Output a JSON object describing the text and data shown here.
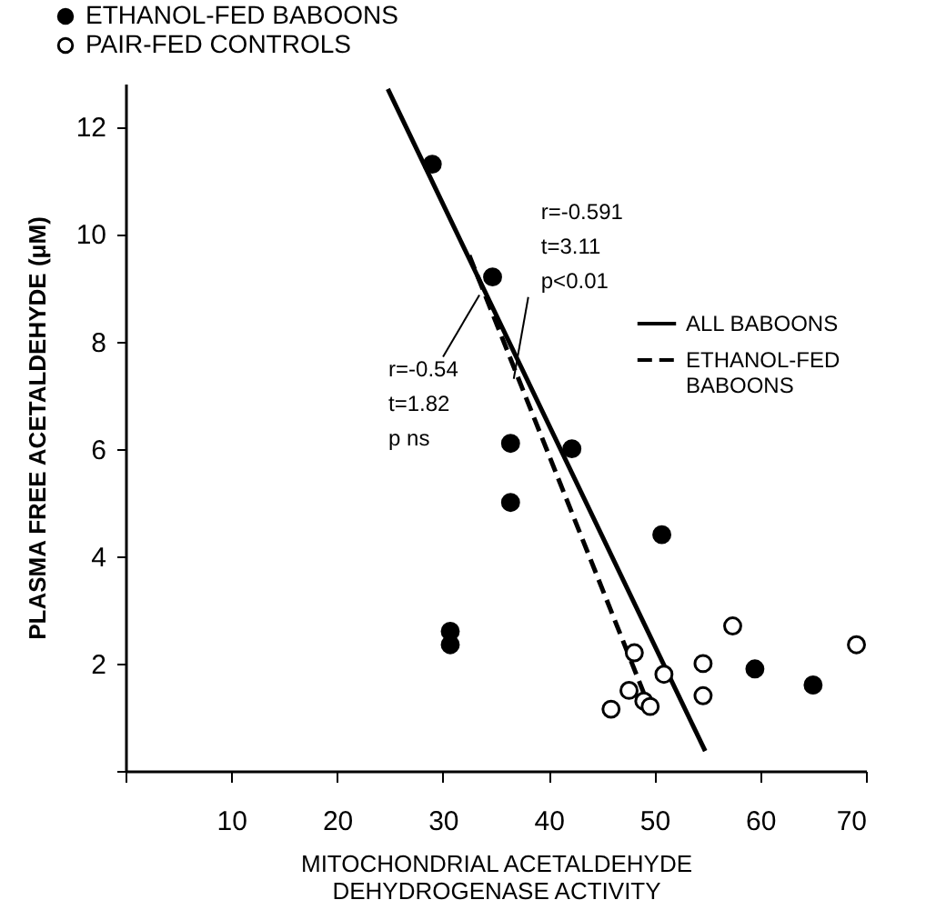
{
  "chart_data": {
    "type": "scatter",
    "xlabel": "MITOCHONDRIAL ACETALDEHYDE\nDEHYDROGENASE ACTIVITY",
    "ylabel": "PLASMA FREE ACETALDEHYDE (μM)",
    "xlim": [
      0,
      70
    ],
    "xticks": [
      {
        "value": 0,
        "label": null
      },
      10,
      20,
      30,
      40,
      50,
      60,
      70
    ],
    "ylim": [
      0,
      12.8
    ],
    "yticks": [
      {
        "value": 0,
        "label": null
      },
      2,
      4,
      6,
      8,
      10,
      12
    ],
    "legend": "top left",
    "grid": false,
    "series": [
      {
        "name": "ETHANOL-FED BABOONS",
        "type": "scatter",
        "marker": "circle",
        "color": "#000000",
        "x": [
          29.0,
          34.7,
          36.4,
          36.4,
          42.2,
          50.7,
          30.7,
          30.7,
          59.5,
          65.0
        ],
        "values": [
          11.3,
          9.2,
          6.1,
          5.0,
          6.0,
          4.4,
          2.6,
          2.35,
          1.9,
          1.6
        ]
      },
      {
        "name": "PAIR-FED CONTROLS",
        "type": "scatter",
        "marker": "circle",
        "color": "#ffffff",
        "x": [
          45.9,
          47.6,
          48.1,
          49.0,
          49.6,
          50.9,
          54.6,
          54.6,
          57.4,
          69.1
        ],
        "values": [
          1.15,
          1.5,
          2.2,
          1.3,
          1.2,
          1.8,
          2.0,
          1.4,
          2.7,
          2.35
        ]
      },
      {
        "name": "ALL BABOONS",
        "type": "line",
        "marker": "none",
        "line_style": "solid",
        "color": "#000000",
        "x": [
          24.8,
          54.8
        ],
        "values": [
          12.7,
          0.37
        ]
      },
      {
        "name": "ETHANOL-FED BABOONS",
        "type": "line",
        "marker": "none",
        "line_style": "dashed",
        "color": "#000000",
        "x": [
          32.5,
          49.3
        ],
        "values": [
          9.6,
          1.3
        ]
      }
    ],
    "annotations": [
      {
        "text": "r=-0.591\nt=3.11\np<0.01",
        "x": 36.7,
        "y": 7.2
      },
      {
        "text": "r=-0.54\nt=1.82\np ns",
        "x": 33.8,
        "y": 9.0
      }
    ]
  }
}
